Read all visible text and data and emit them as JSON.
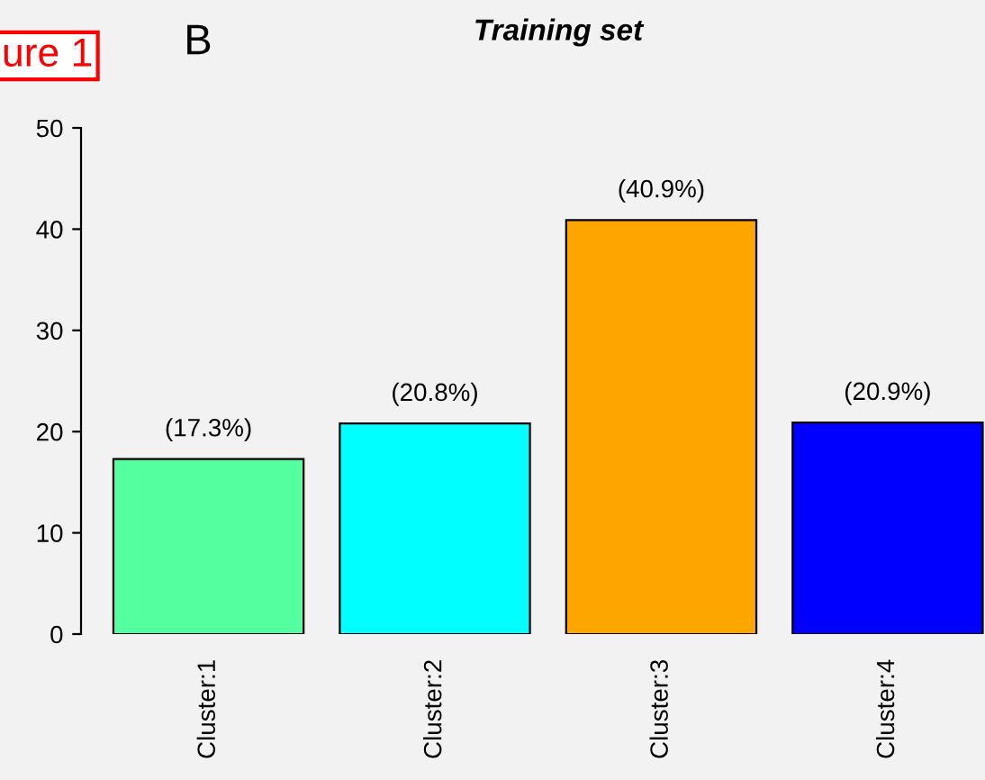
{
  "chart_data": {
    "type": "bar",
    "title": "Training set",
    "categories": [
      "Cluster:1",
      "Cluster:2",
      "Cluster:3",
      "Cluster:4"
    ],
    "values": [
      17.3,
      20.8,
      40.9,
      20.9
    ],
    "colors": [
      "#54ff9f",
      "#00ffff",
      "#ffa500",
      "#0000ff"
    ],
    "value_labels": [
      "(17.3%)",
      "(20.8%)",
      "(40.9%)",
      "(20.9%)"
    ],
    "ylim": [
      0,
      50
    ],
    "yticks": [
      0,
      10,
      20,
      30,
      40,
      50
    ],
    "grid": false,
    "legend": false,
    "annotations": [
      "ure 1",
      "B"
    ]
  }
}
